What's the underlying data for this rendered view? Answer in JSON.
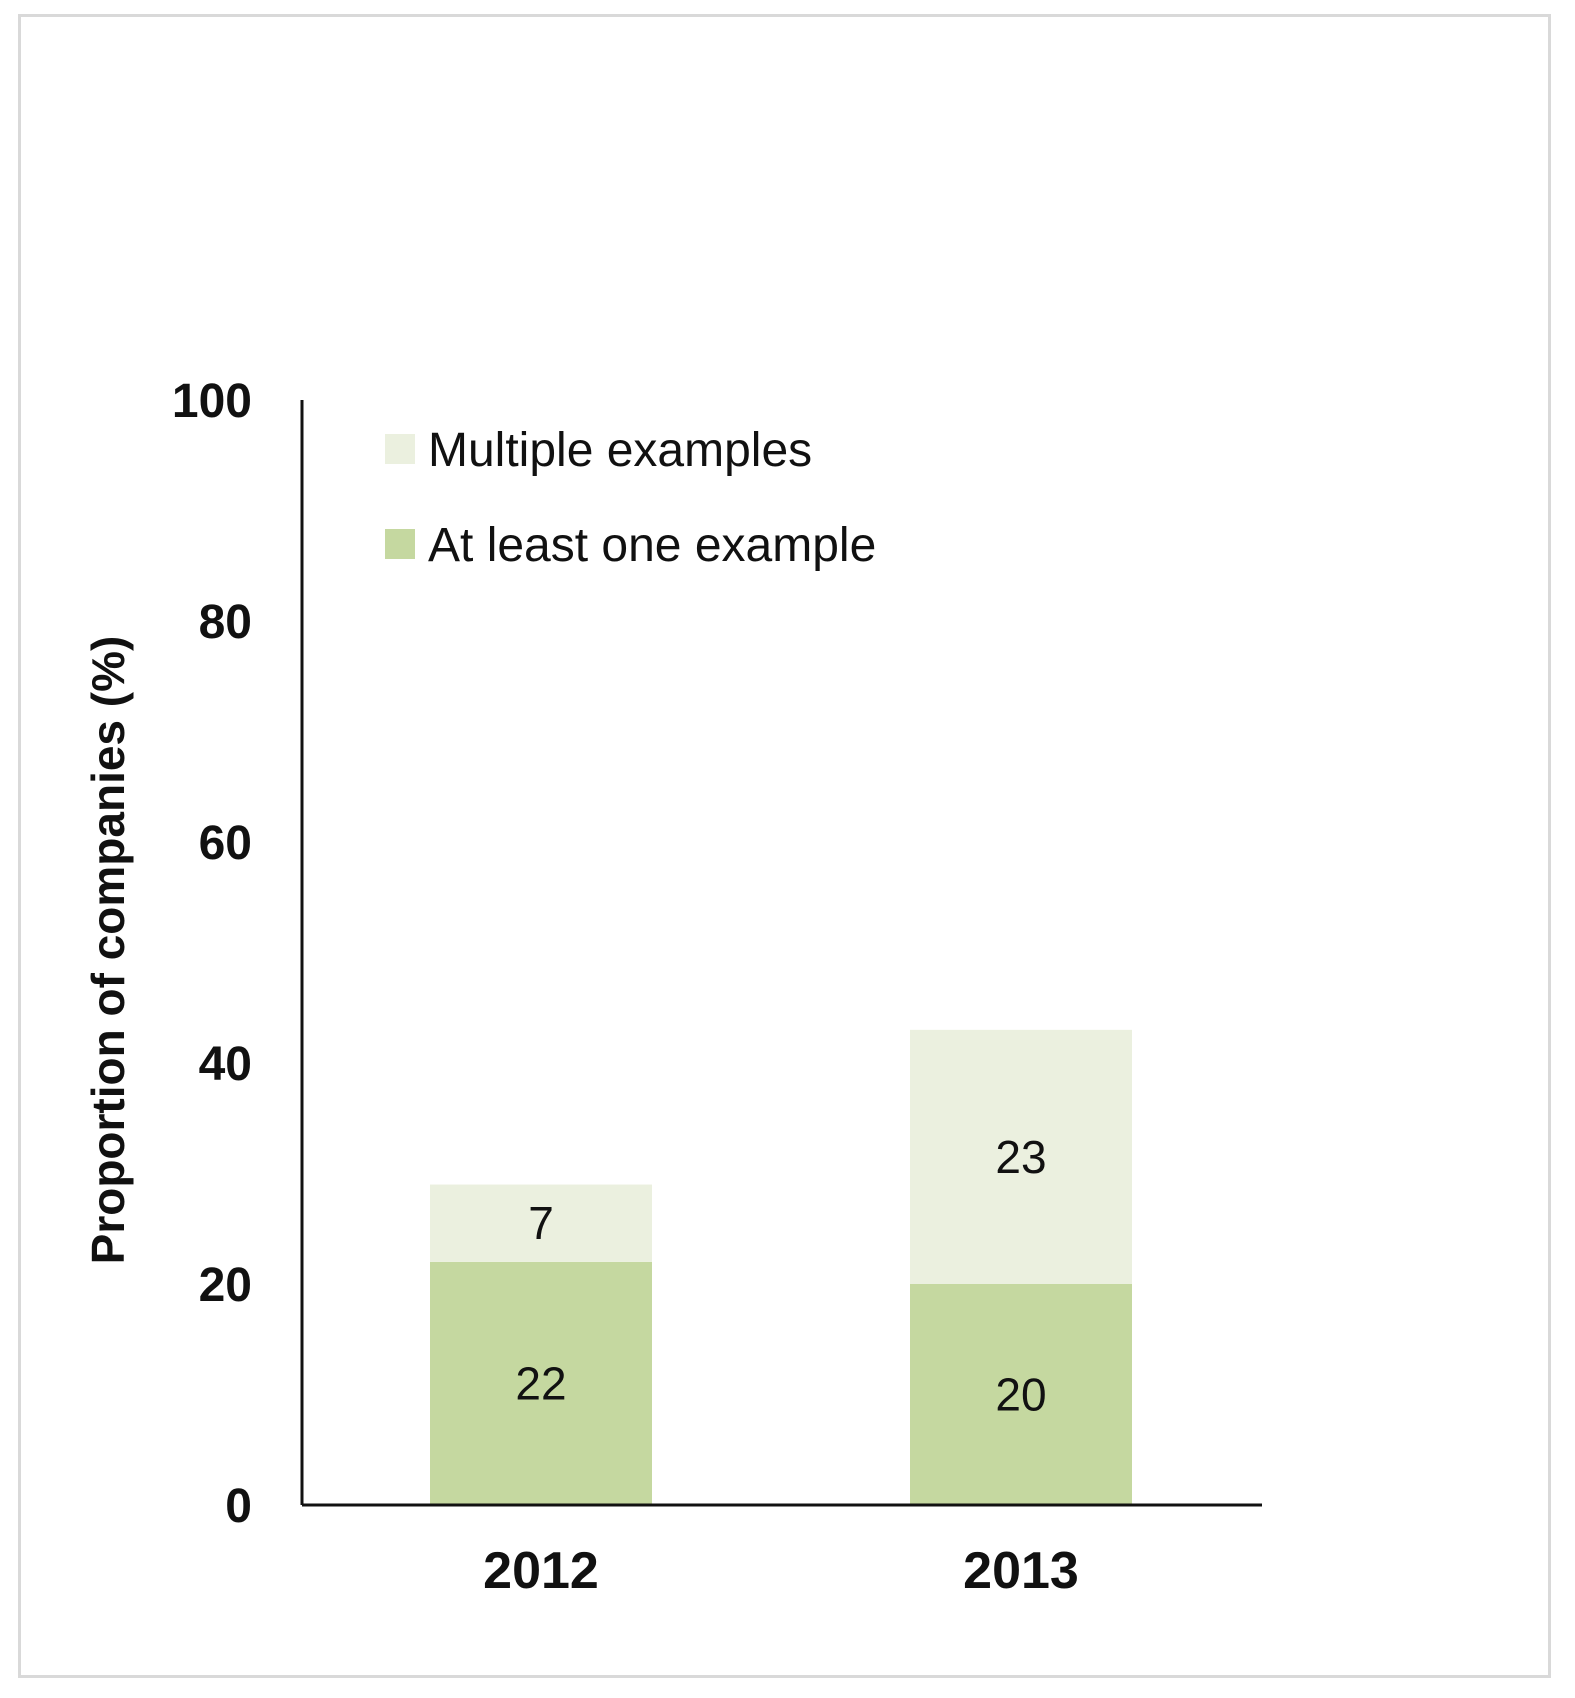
{
  "chart_data": {
    "type": "bar",
    "stacked": true,
    "categories": [
      "2012",
      "2013"
    ],
    "series": [
      {
        "name": "At least one example",
        "values": [
          22,
          20
        ],
        "color": "#c5d8a0"
      },
      {
        "name": "Multiple examples",
        "values": [
          7,
          23
        ],
        "color": "#ebf0df"
      }
    ],
    "title": "",
    "xlabel": "",
    "ylabel": "Proportion of companies (%)",
    "ylim": [
      0,
      100
    ],
    "yticks": [
      0,
      20,
      40,
      60,
      80,
      100
    ],
    "grid": false,
    "legend_position": "top-left",
    "legend_order": [
      "Multiple examples",
      "At least one example"
    ],
    "data_labels": true
  }
}
